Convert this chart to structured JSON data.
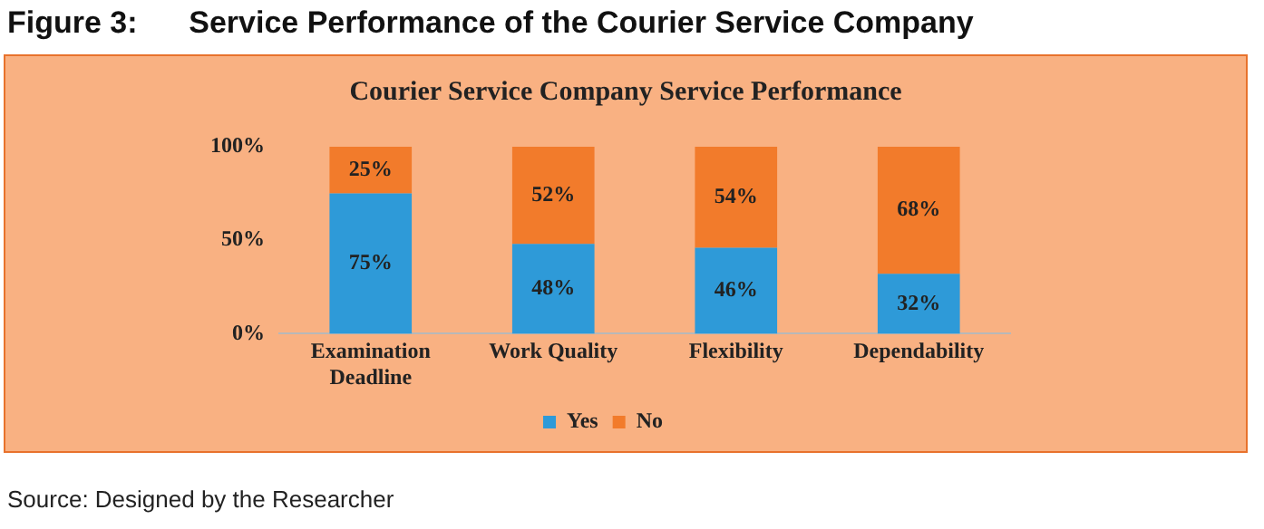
{
  "chart_data": {
    "type": "bar",
    "title": "Figure 3:      Service Performance of the Courier Service Company",
    "subtitle": "Courier Service Company Service Performance",
    "categories": [
      "Examination Deadline",
      "Work Quality",
      "Flexibility",
      "Dependability"
    ],
    "stacked": true,
    "series": [
      {
        "name": "Yes",
        "color": "#2e9ad8",
        "values": [
          75,
          48,
          46,
          32
        ],
        "value_labels": [
          "75%",
          "48%",
          "46%",
          "32%"
        ]
      },
      {
        "name": "No",
        "color": "#f27b2b",
        "values": [
          25,
          52,
          54,
          68
        ],
        "value_labels": [
          "25%",
          "52%",
          "54%",
          "68%"
        ]
      }
    ],
    "ylim": [
      0,
      100
    ],
    "yticks": [
      {
        "value": 0,
        "label": "0%"
      },
      {
        "value": 50,
        "label": "50%"
      },
      {
        "value": 100,
        "label": "100%"
      }
    ],
    "grid": false,
    "legend": "bottom",
    "annotations": [
      "Source: Designed by the Researcher"
    ]
  }
}
